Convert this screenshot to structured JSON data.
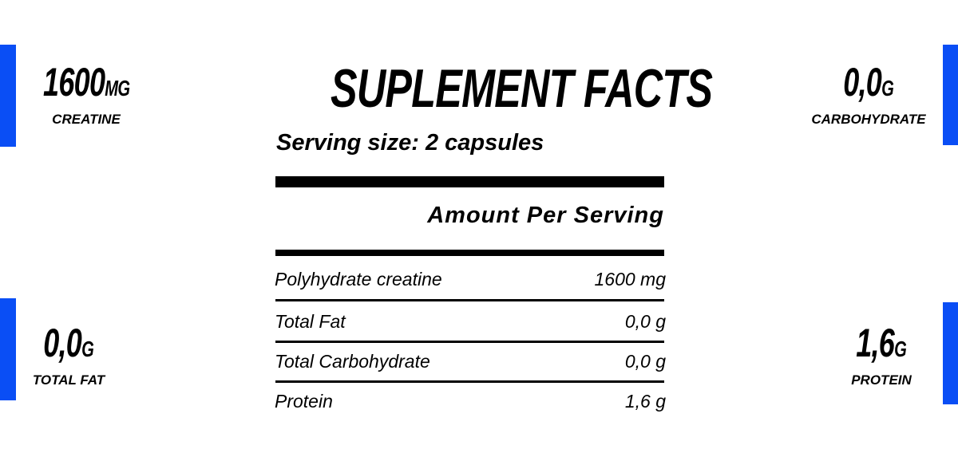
{
  "accent_color": "#0a4ef5",
  "title": "SUPLEMENT FACTS",
  "serving_size": "Serving size: 2 capsules",
  "amount_header": "Amount Per Serving",
  "stats": {
    "creatine": {
      "value": "1600",
      "unit": "MG",
      "label": "CREATINE"
    },
    "carbohydrate": {
      "value": "0,0",
      "unit": "G",
      "label": "CARBOHYDRATE"
    },
    "fat": {
      "value": "0,0",
      "unit": "G",
      "label": "TOTAL FAT"
    },
    "protein": {
      "value": "1,6",
      "unit": "G",
      "label": "PROTEIN"
    }
  },
  "rows": [
    {
      "name": "Polyhydrate creatine",
      "amount": "1600 mg"
    },
    {
      "name": "Total Fat",
      "amount": "0,0 g"
    },
    {
      "name": "Total Carbohydrate",
      "amount": "0,0 g"
    },
    {
      "name": "Protein",
      "amount": "1,6 g"
    }
  ]
}
